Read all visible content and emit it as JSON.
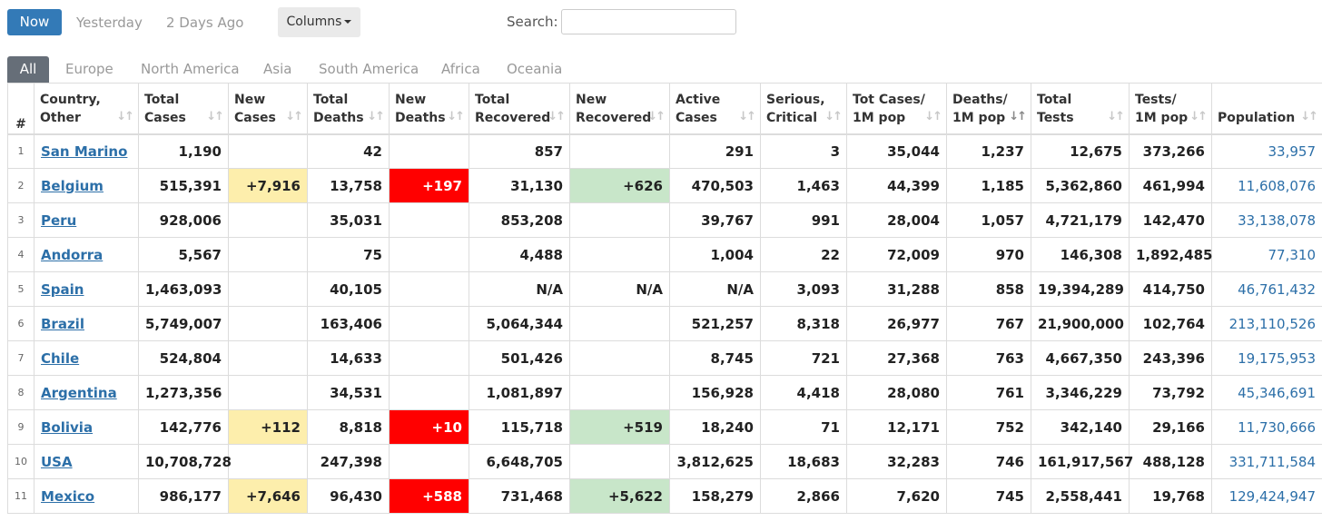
{
  "topbar": {
    "now_label": "Now",
    "yesterday_label": "Yesterday",
    "two_days_label": "2 Days Ago",
    "columns_label": "Columns",
    "search_label": "Search:",
    "search_value": ""
  },
  "tabs": [
    "All",
    "Europe",
    "North America",
    "Asia",
    "South America",
    "Africa",
    "Oceania"
  ],
  "columns": [
    [
      "#",
      ""
    ],
    [
      "Country,",
      "Other"
    ],
    [
      "Total",
      "Cases"
    ],
    [
      "New",
      "Cases"
    ],
    [
      "Total",
      "Deaths"
    ],
    [
      "New",
      "Deaths"
    ],
    [
      "Total",
      "Recovered"
    ],
    [
      "New",
      "Recovered"
    ],
    [
      "Active",
      "Cases"
    ],
    [
      "Serious,",
      "Critical"
    ],
    [
      "Tot Cases/",
      "1M pop"
    ],
    [
      "Deaths/",
      "1M pop"
    ],
    [
      "Total",
      "Tests"
    ],
    [
      "Tests/",
      "1M pop"
    ],
    [
      "Population",
      ""
    ]
  ],
  "rows": [
    {
      "num": "1",
      "country": "San Marino",
      "total_cases": "1,190",
      "new_cases": "",
      "total_deaths": "42",
      "new_deaths": "",
      "total_recovered": "857",
      "new_recovered": "",
      "active_cases": "291",
      "serious": "3",
      "cases_per_1m": "35,044",
      "deaths_per_1m": "1,237",
      "total_tests": "12,675",
      "tests_per_1m": "373,266",
      "population": "33,957"
    },
    {
      "num": "2",
      "country": "Belgium",
      "total_cases": "515,391",
      "new_cases": "+7,916",
      "total_deaths": "13,758",
      "new_deaths": "+197",
      "total_recovered": "31,130",
      "new_recovered": "+626",
      "active_cases": "470,503",
      "serious": "1,463",
      "cases_per_1m": "44,399",
      "deaths_per_1m": "1,185",
      "total_tests": "5,362,860",
      "tests_per_1m": "461,994",
      "population": "11,608,076"
    },
    {
      "num": "3",
      "country": "Peru",
      "total_cases": "928,006",
      "new_cases": "",
      "total_deaths": "35,031",
      "new_deaths": "",
      "total_recovered": "853,208",
      "new_recovered": "",
      "active_cases": "39,767",
      "serious": "991",
      "cases_per_1m": "28,004",
      "deaths_per_1m": "1,057",
      "total_tests": "4,721,179",
      "tests_per_1m": "142,470",
      "population": "33,138,078"
    },
    {
      "num": "4",
      "country": "Andorra",
      "total_cases": "5,567",
      "new_cases": "",
      "total_deaths": "75",
      "new_deaths": "",
      "total_recovered": "4,488",
      "new_recovered": "",
      "active_cases": "1,004",
      "serious": "22",
      "cases_per_1m": "72,009",
      "deaths_per_1m": "970",
      "total_tests": "146,308",
      "tests_per_1m": "1,892,485",
      "population": "77,310"
    },
    {
      "num": "5",
      "country": "Spain",
      "total_cases": "1,463,093",
      "new_cases": "",
      "total_deaths": "40,105",
      "new_deaths": "",
      "total_recovered": "N/A",
      "new_recovered": "N/A",
      "active_cases": "N/A",
      "serious": "3,093",
      "cases_per_1m": "31,288",
      "deaths_per_1m": "858",
      "total_tests": "19,394,289",
      "tests_per_1m": "414,750",
      "population": "46,761,432"
    },
    {
      "num": "6",
      "country": "Brazil",
      "total_cases": "5,749,007",
      "new_cases": "",
      "total_deaths": "163,406",
      "new_deaths": "",
      "total_recovered": "5,064,344",
      "new_recovered": "",
      "active_cases": "521,257",
      "serious": "8,318",
      "cases_per_1m": "26,977",
      "deaths_per_1m": "767",
      "total_tests": "21,900,000",
      "tests_per_1m": "102,764",
      "population": "213,110,526"
    },
    {
      "num": "7",
      "country": "Chile",
      "total_cases": "524,804",
      "new_cases": "",
      "total_deaths": "14,633",
      "new_deaths": "",
      "total_recovered": "501,426",
      "new_recovered": "",
      "active_cases": "8,745",
      "serious": "721",
      "cases_per_1m": "27,368",
      "deaths_per_1m": "763",
      "total_tests": "4,667,350",
      "tests_per_1m": "243,396",
      "population": "19,175,953"
    },
    {
      "num": "8",
      "country": "Argentina",
      "total_cases": "1,273,356",
      "new_cases": "",
      "total_deaths": "34,531",
      "new_deaths": "",
      "total_recovered": "1,081,897",
      "new_recovered": "",
      "active_cases": "156,928",
      "serious": "4,418",
      "cases_per_1m": "28,080",
      "deaths_per_1m": "761",
      "total_tests": "3,346,229",
      "tests_per_1m": "73,792",
      "population": "45,346,691"
    },
    {
      "num": "9",
      "country": "Bolivia",
      "total_cases": "142,776",
      "new_cases": "+112",
      "total_deaths": "8,818",
      "new_deaths": "+10",
      "total_recovered": "115,718",
      "new_recovered": "+519",
      "active_cases": "18,240",
      "serious": "71",
      "cases_per_1m": "12,171",
      "deaths_per_1m": "752",
      "total_tests": "342,140",
      "tests_per_1m": "29,166",
      "population": "11,730,666"
    },
    {
      "num": "10",
      "country": "USA",
      "total_cases": "10,708,728",
      "new_cases": "",
      "total_deaths": "247,398",
      "new_deaths": "",
      "total_recovered": "6,648,705",
      "new_recovered": "",
      "active_cases": "3,812,625",
      "serious": "18,683",
      "cases_per_1m": "32,283",
      "deaths_per_1m": "746",
      "total_tests": "161,917,567",
      "tests_per_1m": "488,128",
      "population": "331,711,584"
    },
    {
      "num": "11",
      "country": "Mexico",
      "total_cases": "986,177",
      "new_cases": "+7,646",
      "total_deaths": "96,430",
      "new_deaths": "+588",
      "total_recovered": "731,468",
      "new_recovered": "+5,622",
      "active_cases": "158,279",
      "serious": "2,866",
      "cases_per_1m": "7,620",
      "deaths_per_1m": "745",
      "total_tests": "2,558,441",
      "tests_per_1m": "19,768",
      "population": "129,424,947"
    }
  ],
  "colors": {
    "accent": "#337ab7",
    "link": "#2c6fa8",
    "new_cases_bg": "#fdeeac",
    "new_deaths_bg": "#ff0000",
    "new_recovered_bg": "#c8e6c9"
  }
}
